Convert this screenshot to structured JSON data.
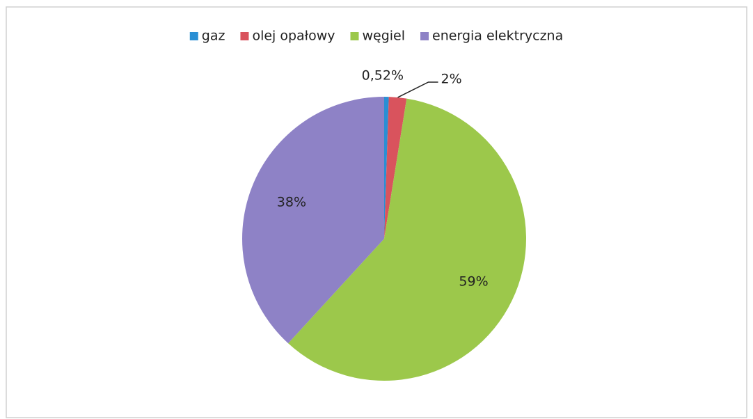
{
  "chart_data": {
    "type": "pie",
    "categories": [
      "gaz",
      "olej opałowy",
      "węgiel",
      "energia elektryczna"
    ],
    "values": [
      0.52,
      2,
      59,
      38
    ],
    "value_labels": [
      "0,52%",
      "2%",
      "59%",
      "38%"
    ],
    "colors": [
      "#2a8fd4",
      "#d9535d",
      "#9cc84b",
      "#8e82c6"
    ],
    "legend": "top"
  }
}
